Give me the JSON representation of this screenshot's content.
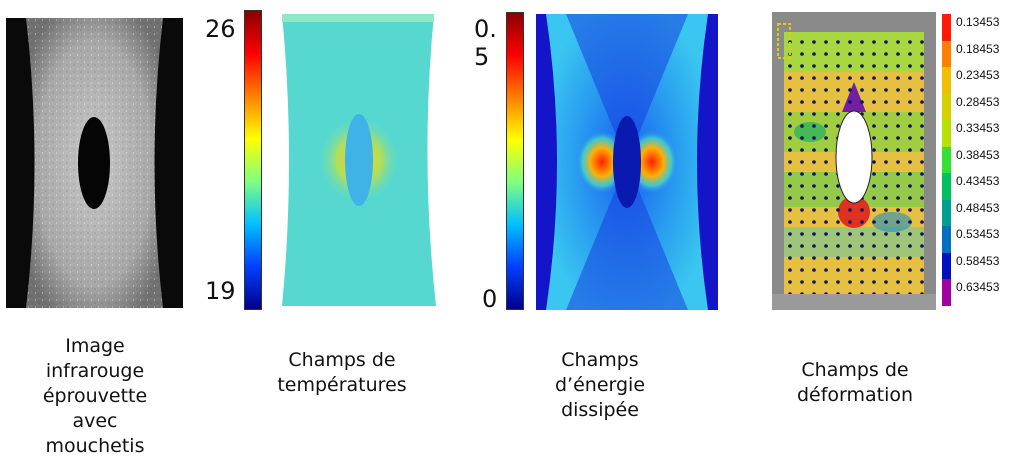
{
  "captions": {
    "ir": [
      "Image",
      "infrarouge",
      "éprouvette",
      "avec",
      "mouchetis"
    ],
    "temp": [
      "Champs de",
      "températures"
    ],
    "energy": [
      "Champs",
      "d’énergie",
      "dissipée"
    ],
    "deform": [
      "Champs de",
      "déformation"
    ]
  },
  "temp_scale": {
    "max": "26",
    "min": "19"
  },
  "energy_scale": {
    "max_line1": "0.",
    "max_line2": "5",
    "min": "0"
  },
  "deform_legend": {
    "values": [
      "0.13453",
      "0.18453",
      "0.23453",
      "0.28453",
      "0.33453",
      "0.38453",
      "0.43453",
      "0.48453",
      "0.53453",
      "0.58453",
      "0.63453"
    ],
    "colors": [
      "#ff1a00",
      "#ff8000",
      "#f0c000",
      "#d7d000",
      "#b5e000",
      "#33e033",
      "#00c060",
      "#00a090",
      "#0070c0",
      "#0010c0",
      "#a000a0"
    ]
  }
}
